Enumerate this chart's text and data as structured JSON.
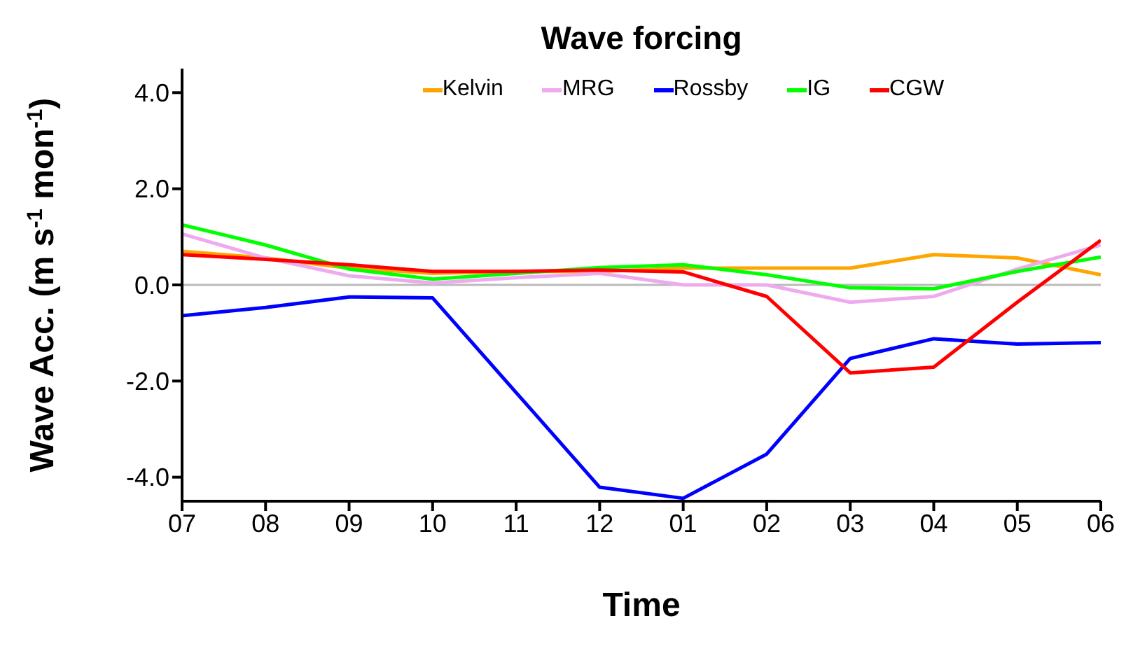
{
  "chart_data": {
    "type": "line",
    "title": "Wave forcing",
    "xlabel": "Time",
    "ylabel": "Wave Acc. (m s$^{-1}$ mon$^{-1}$)",
    "categories": [
      "07",
      "08",
      "09",
      "10",
      "11",
      "12",
      "01",
      "02",
      "03",
      "04",
      "05",
      "06"
    ],
    "series": [
      {
        "name": "Kelvin",
        "color": "#ffa500",
        "values": [
          0.7,
          0.56,
          0.35,
          0.24,
          0.28,
          0.28,
          0.35,
          0.35,
          0.35,
          0.63,
          0.56,
          0.21
        ]
      },
      {
        "name": "MRG",
        "color": "#eeaaee",
        "values": [
          1.06,
          0.56,
          0.19,
          0.04,
          0.15,
          0.24,
          0.0,
          0.0,
          -0.36,
          -0.24,
          0.33,
          0.83
        ]
      },
      {
        "name": "Rossby",
        "color": "#0000ff",
        "values": [
          -0.64,
          -0.47,
          -0.25,
          -0.27,
          -2.24,
          -4.21,
          -4.44,
          -3.52,
          -1.53,
          -1.12,
          -1.23,
          -1.2
        ]
      },
      {
        "name": "IG",
        "color": "#00ff00",
        "values": [
          1.25,
          0.83,
          0.33,
          0.12,
          0.24,
          0.36,
          0.42,
          0.21,
          -0.06,
          -0.08,
          0.28,
          0.58
        ]
      },
      {
        "name": "CGW",
        "color": "#ff0000",
        "values": [
          0.63,
          0.53,
          0.42,
          0.28,
          0.28,
          0.31,
          0.27,
          -0.24,
          -1.83,
          -1.71,
          -0.36,
          0.93
        ]
      }
    ],
    "ylim": [
      -4.5,
      4.5
    ],
    "yticks": [
      {
        "value": -4,
        "label": "-4.0"
      },
      {
        "value": -2,
        "label": "-2.0"
      },
      {
        "value": 0,
        "label": "0.0"
      },
      {
        "value": 2,
        "label": "2.0"
      },
      {
        "value": 4,
        "label": "4.0"
      }
    ],
    "ref_lines": [
      {
        "axis": "y",
        "value": 0,
        "label": null,
        "color": "#bbbbbb"
      }
    ],
    "grid": false,
    "legend": "top",
    "marker": "none",
    "line_style": "solid"
  }
}
